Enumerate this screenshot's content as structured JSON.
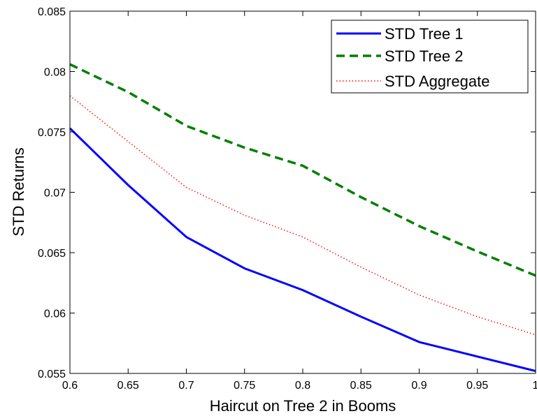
{
  "chart_data": {
    "type": "line",
    "title": "",
    "xlabel": "Haircut on Tree 2 in Booms",
    "ylabel": "STD Returns",
    "xlim": [
      0.6,
      1
    ],
    "ylim": [
      0.055,
      0.085
    ],
    "xticks": [
      0.6,
      0.65,
      0.7,
      0.75,
      0.8,
      0.85,
      0.9,
      0.95,
      1
    ],
    "xtick_labels": [
      "0.6",
      "0.65",
      "0.7",
      "0.75",
      "0.8",
      "0.85",
      "0.9",
      "0.95",
      "1"
    ],
    "yticks": [
      0.055,
      0.06,
      0.065,
      0.07,
      0.075,
      0.08,
      0.085
    ],
    "ytick_labels": [
      "0.055",
      "0.06",
      "0.065",
      "0.07",
      "0.075",
      "0.08",
      "0.085"
    ],
    "grid": false,
    "legend_position": "top-right",
    "x": [
      0.6,
      0.65,
      0.7,
      0.75,
      0.8,
      0.85,
      0.9,
      0.95,
      1
    ],
    "series": [
      {
        "name": "STD Tree 1",
        "color": "#0000ff",
        "style": "solid",
        "values": [
          0.0753,
          0.0706,
          0.0663,
          0.0637,
          0.0619,
          0.0597,
          0.0576,
          0.0564,
          0.0552
        ]
      },
      {
        "name": "STD Tree 2",
        "color": "#007f00",
        "style": "dashed",
        "values": [
          0.0806,
          0.0783,
          0.0755,
          0.0737,
          0.0722,
          0.0696,
          0.0672,
          0.0651,
          0.0631
        ]
      },
      {
        "name": "STD Aggregate",
        "color": "#ff0000",
        "style": "dotted",
        "values": [
          0.078,
          0.0742,
          0.0704,
          0.0681,
          0.0663,
          0.0638,
          0.0615,
          0.0597,
          0.0582
        ]
      }
    ]
  }
}
